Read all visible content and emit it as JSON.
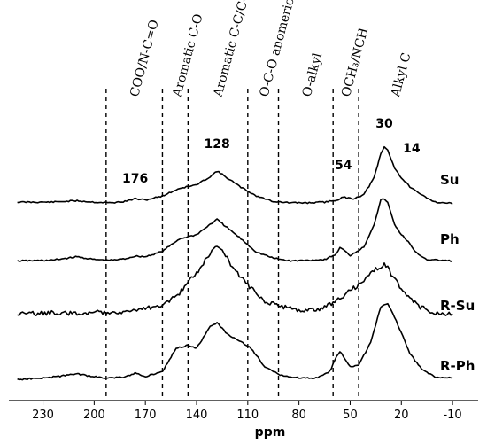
{
  "chart_data": {
    "type": "line",
    "xlabel": "ppm",
    "ylabel": "",
    "xlim": [
      250,
      -25
    ],
    "x_reversed": true,
    "xticks": [
      230,
      200,
      170,
      140,
      110,
      80,
      50,
      20,
      -10
    ],
    "region_boundaries": [
      193,
      160,
      145,
      110,
      92,
      60,
      45
    ],
    "regions": [
      {
        "label": "COO/N-C=O",
        "center": 177
      },
      {
        "label": "Aromatic C-O",
        "center": 152
      },
      {
        "label": "Aromatic C-C/C-H",
        "center": 128
      },
      {
        "label": "O-C-O anomeric",
        "center": 101
      },
      {
        "label": "O-alkyl",
        "center": 76
      },
      {
        "label": "OCH₃/NCH",
        "center": 53
      },
      {
        "label": "Alkyl C",
        "center": 24
      }
    ],
    "peak_labels": [
      {
        "text": "176",
        "x": 176
      },
      {
        "text": "128",
        "x": 128
      },
      {
        "text": "54",
        "x": 54
      },
      {
        "text": "30",
        "x": 30
      },
      {
        "text": "14",
        "x": 14
      }
    ],
    "series": [
      {
        "name": "Su",
        "x": [
          245,
          225,
          210,
          200,
          190,
          182,
          176,
          170,
          160,
          150,
          140,
          132,
          128,
          122,
          115,
          105,
          95,
          85,
          75,
          65,
          58,
          54,
          48,
          42,
          36,
          32,
          30,
          28,
          24,
          20,
          16,
          14,
          10,
          0,
          -10
        ],
        "y": [
          0.05,
          0.05,
          0.07,
          0.05,
          0.04,
          0.06,
          0.1,
          0.08,
          0.14,
          0.25,
          0.3,
          0.42,
          0.5,
          0.4,
          0.28,
          0.14,
          0.06,
          0.04,
          0.04,
          0.05,
          0.08,
          0.12,
          0.1,
          0.16,
          0.4,
          0.75,
          0.85,
          0.8,
          0.55,
          0.4,
          0.3,
          0.25,
          0.18,
          0.05,
          0.03
        ]
      },
      {
        "name": "Ph",
        "x": [
          245,
          225,
          210,
          200,
          190,
          182,
          176,
          170,
          160,
          150,
          140,
          132,
          128,
          122,
          115,
          105,
          95,
          85,
          75,
          65,
          58,
          56,
          54,
          50,
          42,
          36,
          32,
          30,
          28,
          24,
          20,
          16,
          12,
          5,
          -10
        ],
        "y": [
          0.02,
          0.03,
          0.08,
          0.04,
          0.03,
          0.05,
          0.09,
          0.08,
          0.16,
          0.34,
          0.4,
          0.55,
          0.62,
          0.5,
          0.36,
          0.15,
          0.06,
          0.02,
          0.03,
          0.04,
          0.12,
          0.22,
          0.18,
          0.1,
          0.22,
          0.55,
          0.9,
          0.92,
          0.86,
          0.55,
          0.4,
          0.3,
          0.15,
          0.04,
          0.02
        ]
      },
      {
        "name": "R-Su",
        "x": [
          245,
          225,
          210,
          195,
          180,
          170,
          160,
          150,
          140,
          132,
          128,
          124,
          118,
          110,
          100,
          90,
          80,
          70,
          62,
          55,
          50,
          45,
          40,
          35,
          30,
          28,
          25,
          20,
          15,
          10,
          0,
          -10
        ],
        "y": [
          0.08,
          0.1,
          0.09,
          0.11,
          0.12,
          0.15,
          0.2,
          0.35,
          0.6,
          0.85,
          0.92,
          0.85,
          0.65,
          0.45,
          0.25,
          0.18,
          0.14,
          0.14,
          0.2,
          0.3,
          0.38,
          0.45,
          0.55,
          0.65,
          0.7,
          0.66,
          0.55,
          0.4,
          0.28,
          0.18,
          0.1,
          0.08
        ]
      },
      {
        "name": "R-Ph",
        "x": [
          245,
          225,
          210,
          195,
          182,
          176,
          170,
          160,
          152,
          145,
          140,
          132,
          128,
          122,
          115,
          108,
          100,
          90,
          80,
          70,
          62,
          58,
          56,
          54,
          50,
          45,
          38,
          32,
          28,
          24,
          20,
          15,
          8,
          0,
          -10
        ],
        "y": [
          0.02,
          0.05,
          0.09,
          0.04,
          0.05,
          0.1,
          0.06,
          0.12,
          0.42,
          0.46,
          0.42,
          0.7,
          0.75,
          0.6,
          0.52,
          0.42,
          0.18,
          0.07,
          0.04,
          0.04,
          0.12,
          0.32,
          0.38,
          0.32,
          0.18,
          0.2,
          0.5,
          0.95,
          1.0,
          0.82,
          0.62,
          0.35,
          0.15,
          0.05,
          0.04
        ]
      }
    ]
  }
}
